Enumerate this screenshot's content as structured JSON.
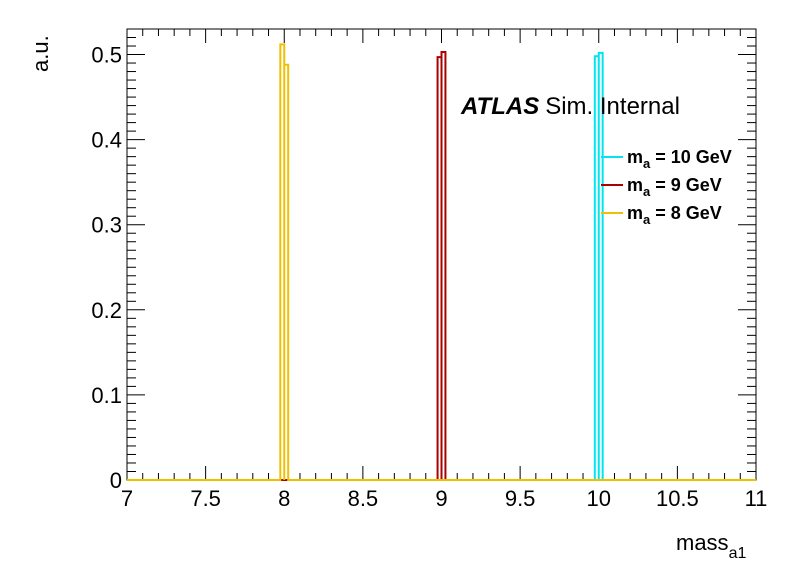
{
  "chart_data": {
    "type": "line",
    "style": "step-histogram",
    "xlabel_main": "mass",
    "xlabel_sub": "a1",
    "ylabel": "a.u.",
    "xlim": [
      7,
      11
    ],
    "ylim": [
      0,
      0.53
    ],
    "x_ticks": [
      "7",
      "7.5",
      "8",
      "8.5",
      "9",
      "9.5",
      "10",
      "10.5",
      "11"
    ],
    "y_ticks": [
      "0",
      "0.1",
      "0.2",
      "0.3",
      "0.4",
      "0.5"
    ],
    "annotation": {
      "bold": "ATLAS",
      "rest": "Sim. Internal"
    },
    "series": [
      {
        "name": "10 GeV",
        "legend_main": "m",
        "legend_sub": "a",
        "legend_rest": " = 10 GeV",
        "color": "#00e5ee",
        "bins": [
          [
            9.975,
            10.0,
            0.498
          ],
          [
            10.0,
            10.025,
            0.502
          ]
        ]
      },
      {
        "name": "9 GeV",
        "legend_main": "m",
        "legend_sub": "a",
        "legend_rest": " = 9 GeV",
        "color": "#aa0000",
        "bins": [
          [
            8.975,
            9.0,
            0.497
          ],
          [
            9.0,
            9.025,
            0.503
          ]
        ]
      },
      {
        "name": "8 GeV",
        "legend_main": "m",
        "legend_sub": "a",
        "legend_rest": " = 8 GeV",
        "color": "#f0c000",
        "bins": [
          [
            7.975,
            8.0,
            0.512
          ],
          [
            8.0,
            8.025,
            0.488
          ]
        ]
      }
    ]
  }
}
